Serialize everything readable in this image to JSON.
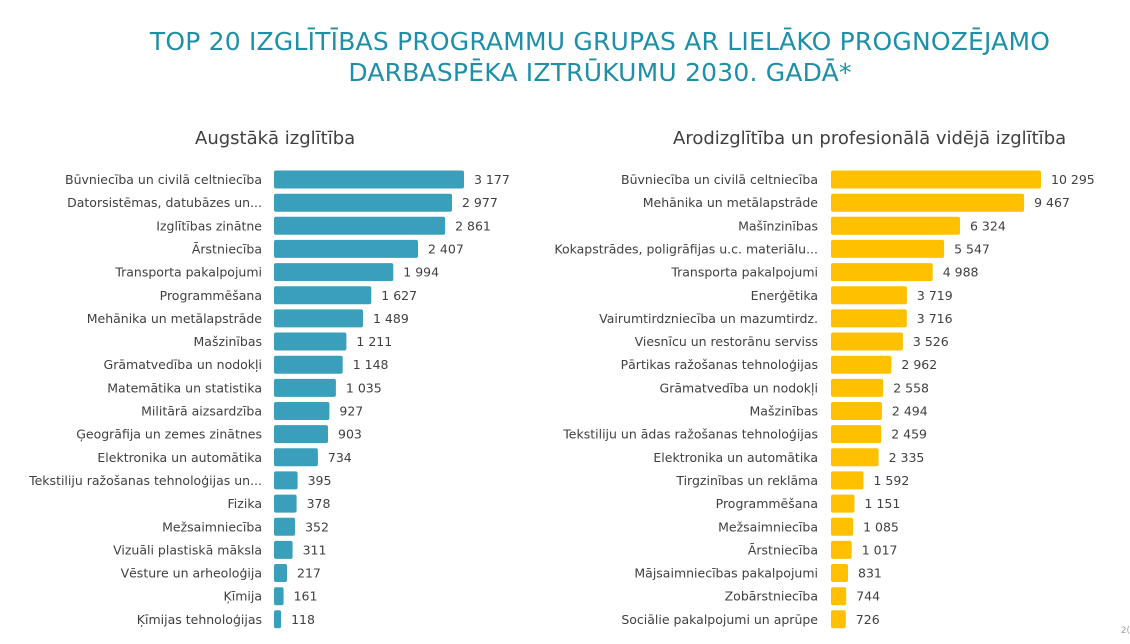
{
  "title": {
    "line1": "TOP 20 IZGLĪTĪBAS PROGRAMMU GRUPAS AR LIELĀKO PROGNOZĒJAMO",
    "line2": "DARBASPĒKA IZTRŪKUMU 2030. GADĀ*"
  },
  "page_number": "2(",
  "chart_data": [
    {
      "type": "bar",
      "orientation": "horizontal",
      "title": "Augstākā izglītība",
      "color": "#3a9fbb",
      "categories": [
        "Būvniecība un civilā celtniecība",
        "Datorsistēmas, datubāzes un...",
        "Izglītības zinātne",
        "Ārstniecība",
        "Transporta pakalpojumi",
        "Programmēšana",
        "Mehānika un metālapstrāde",
        "Mašzinības",
        "Grāmatvedība un nodokļi",
        "Matemātika un statistika",
        "Militārā aizsardzība",
        "Ģeogrāfija un zemes zinātnes",
        "Elektronika un automātika",
        "Tekstiliju ražošanas tehnoloģijas un...",
        "Fizika",
        "Mežsaimniecība",
        "Vizuāli plastiskā māksla",
        "Vēsture un arheoloģija",
        "Ķīmija",
        "Ķīmijas tehnoloģijas"
      ],
      "values": [
        3177,
        2977,
        2861,
        2407,
        1994,
        1627,
        1489,
        1211,
        1148,
        1035,
        927,
        903,
        734,
        395,
        378,
        352,
        311,
        217,
        161,
        118
      ],
      "value_labels": [
        "3 177",
        "2 977",
        "2 861",
        "2 407",
        "1 994",
        "1 627",
        "1 489",
        "1 211",
        "1 148",
        "1 035",
        "927",
        "903",
        "734",
        "395",
        "378",
        "352",
        "311",
        "217",
        "161",
        "118"
      ]
    },
    {
      "type": "bar",
      "orientation": "horizontal",
      "title": "Arodizglītība un profesionālā vidējā izglītība",
      "color": "#ffc000",
      "categories": [
        "Būvniecība un civilā celtniecība",
        "Mehānika un metālapstrāde",
        "Mašīnzinības",
        "Kokapstrādes, poligrāfijas u.c. materiālu...",
        "Transporta pakalpojumi",
        "Enerģētika",
        "Vairumtirdzniecība un mazumtirdz.",
        "Viesnīcu un restorānu serviss",
        "Pārtikas ražošanas tehnoloģijas",
        "Grāmatvedība un nodokļi",
        "Mašzinības",
        "Tekstiliju un ādas ražošanas tehnoloģijas",
        "Elektronika un automātika",
        "Tirgzinības un reklāma",
        "Programmēšana",
        "Mežsaimniecība",
        "Ārstniecība",
        "Mājsaimniecības pakalpojumi",
        "Zobārstniecība",
        "Sociālie pakalpojumi un aprūpe"
      ],
      "values": [
        10295,
        9467,
        6324,
        5547,
        4988,
        3719,
        3716,
        3526,
        2962,
        2558,
        2494,
        2459,
        2335,
        1592,
        1151,
        1085,
        1017,
        831,
        744,
        726
      ],
      "value_labels": [
        "10 295",
        "9 467",
        "6 324",
        "5 547",
        "4 988",
        "3 719",
        "3 716",
        "3 526",
        "2 962",
        "2 558",
        "2 494",
        "2 459",
        "2 335",
        "1 592",
        "1 151",
        "1 085",
        "1 017",
        "831",
        "744",
        "726"
      ]
    }
  ]
}
